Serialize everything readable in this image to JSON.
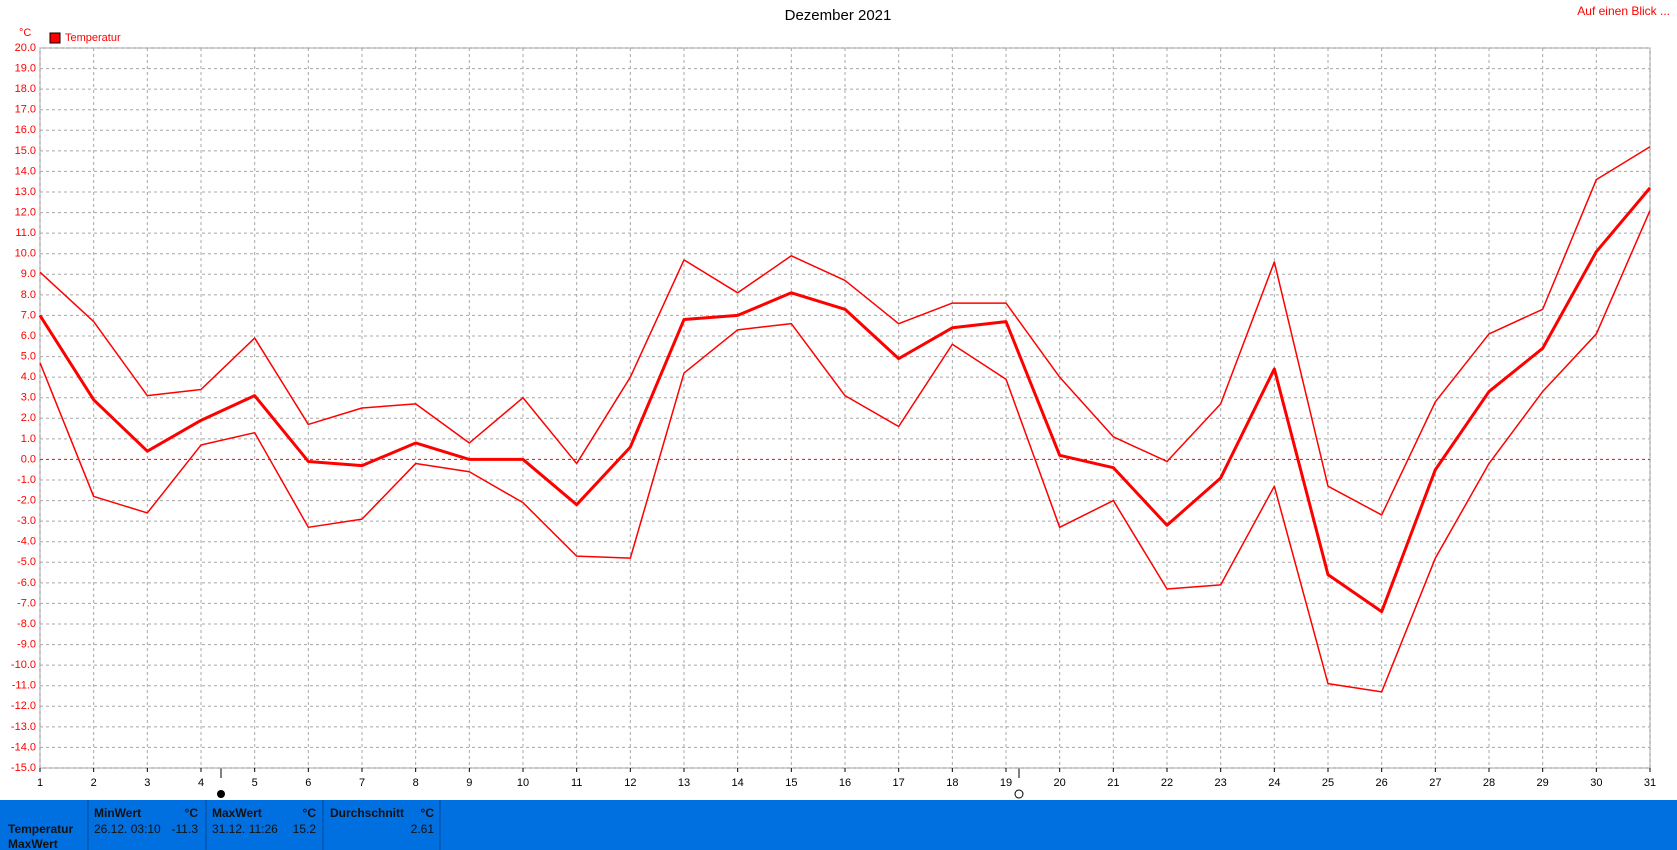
{
  "chart_data": {
    "type": "line",
    "title": "Dezember 2021",
    "corner_link": "Auf einen Blick ...",
    "y_unit": "°C",
    "x": [
      1,
      2,
      3,
      4,
      5,
      6,
      7,
      8,
      9,
      10,
      11,
      12,
      13,
      14,
      15,
      16,
      17,
      18,
      19,
      20,
      21,
      22,
      23,
      24,
      25,
      26,
      27,
      28,
      29,
      30,
      31
    ],
    "xlim": [
      1,
      31
    ],
    "xticks": [
      1,
      2,
      3,
      4,
      5,
      6,
      7,
      8,
      9,
      10,
      11,
      12,
      13,
      14,
      15,
      16,
      17,
      18,
      19,
      20,
      21,
      22,
      23,
      24,
      25,
      26,
      27,
      28,
      29,
      30,
      31
    ],
    "ylim": [
      -15,
      20
    ],
    "yticks": [
      {
        "value": 20,
        "label": "20.0"
      },
      {
        "value": 19,
        "label": "19.0"
      },
      {
        "value": 18,
        "label": "18.0"
      },
      {
        "value": 17,
        "label": "17.0"
      },
      {
        "value": 16,
        "label": "16.0"
      },
      {
        "value": 15,
        "label": "15.0"
      },
      {
        "value": 14,
        "label": "14.0"
      },
      {
        "value": 13,
        "label": "13.0"
      },
      {
        "value": 12,
        "label": "12.0"
      },
      {
        "value": 11,
        "label": "11.0"
      },
      {
        "value": 10,
        "label": "10.0"
      },
      {
        "value": 9,
        "label": "9.0"
      },
      {
        "value": 8,
        "label": "8.0"
      },
      {
        "value": 7,
        "label": "7.0"
      },
      {
        "value": 6,
        "label": "6.0"
      },
      {
        "value": 5,
        "label": "5.0"
      },
      {
        "value": 4,
        "label": "4.0"
      },
      {
        "value": 3,
        "label": "3.0"
      },
      {
        "value": 2,
        "label": "2.0"
      },
      {
        "value": 1,
        "label": "1.0"
      },
      {
        "value": 0,
        "label": "0.0"
      },
      {
        "value": -1,
        "label": "-1.0"
      },
      {
        "value": -2,
        "label": "-2.0"
      },
      {
        "value": -3,
        "label": "-3.0"
      },
      {
        "value": -4,
        "label": "-4.0"
      },
      {
        "value": -5,
        "label": "-5.0"
      },
      {
        "value": -6,
        "label": "-6.0"
      },
      {
        "value": -7,
        "label": "-7.0"
      },
      {
        "value": -8,
        "label": "-8.0"
      },
      {
        "value": -9,
        "label": "-9.0"
      },
      {
        "value": -10,
        "label": "-10.0"
      },
      {
        "value": -11,
        "label": "-11.0"
      },
      {
        "value": -12,
        "label": "-12.0"
      },
      {
        "value": -13,
        "label": "-13.0"
      },
      {
        "value": -14,
        "label": "-14.0"
      },
      {
        "value": -15,
        "label": "-15.0"
      }
    ],
    "grid": true,
    "series": [
      {
        "name": "Temperatur",
        "color": "#ff0000",
        "width": 3,
        "values": [
          7.0,
          2.9,
          0.4,
          1.9,
          3.1,
          -0.1,
          -0.3,
          0.8,
          0.0,
          0.0,
          -2.2,
          0.6,
          6.8,
          7.0,
          8.1,
          7.3,
          4.9,
          6.4,
          6.7,
          0.2,
          -0.4,
          -3.2,
          -0.9,
          4.4,
          -5.6,
          -7.4,
          -0.5,
          3.3,
          5.4,
          10.1,
          13.2
        ]
      },
      {
        "color": "#ff0000",
        "width": 1.5,
        "values": [
          9.1,
          6.7,
          3.1,
          3.4,
          5.9,
          1.7,
          2.5,
          2.7,
          0.8,
          3.0,
          -0.2,
          4.0,
          9.7,
          8.1,
          9.9,
          8.7,
          6.6,
          7.6,
          7.6,
          4.0,
          1.1,
          -0.1,
          2.7,
          9.6,
          -1.3,
          -2.7,
          2.8,
          6.1,
          7.3,
          13.6,
          15.2
        ]
      },
      {
        "color": "#ff0000",
        "width": 1.5,
        "values": [
          4.7,
          -1.8,
          -2.6,
          0.7,
          1.3,
          -3.3,
          -2.9,
          -0.2,
          -0.6,
          -2.1,
          -4.7,
          -4.8,
          4.2,
          6.3,
          6.6,
          3.1,
          1.6,
          5.6,
          3.9,
          -3.3,
          -2.0,
          -6.3,
          -6.1,
          -1.3,
          -10.9,
          -11.3,
          -4.8,
          -0.2,
          3.3,
          6.1,
          12.1
        ]
      }
    ]
  },
  "stats_panel": {
    "row_labels": [
      "Temperatur",
      "MaxWert"
    ],
    "min": {
      "title": "MinWert",
      "unit": "°C",
      "time": "26.12.  03:10",
      "value": "-11.3"
    },
    "max": {
      "title": "MaxWert",
      "unit": "°C",
      "time": "31.12.  11:26",
      "value": "15.2"
    },
    "avg": {
      "title": "Durchschnitt",
      "unit": "°C",
      "value": "2.61"
    }
  }
}
